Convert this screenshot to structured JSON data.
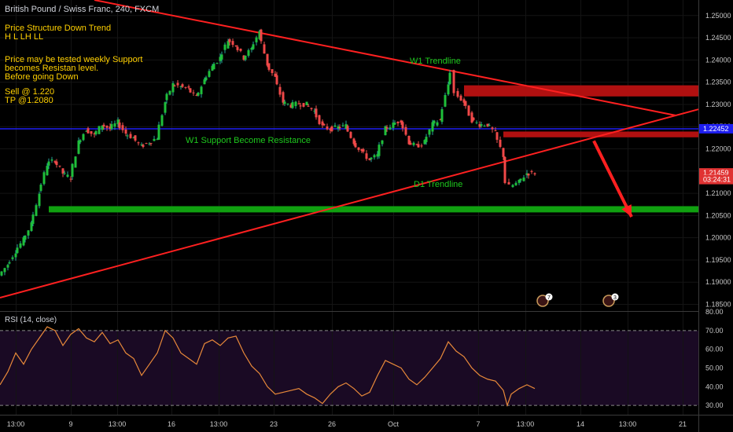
{
  "header": {
    "title": "British Pound / Swiss Franc, 240, FXCM"
  },
  "annotations": {
    "structure_title": "Price Structure Down Trend",
    "structure_sub": "H L LH LL",
    "desc_1": "Price may be tested weekly Support",
    "desc_2": "becomes Resistan level.",
    "desc_3": "Before going Down",
    "sell": "Sell @ 1.220",
    "tp": "TP @1.2080",
    "w1_trendline": "W1 Trendline",
    "w1_support": "W1 Support Become Resistance",
    "d1_trendline": "D1 Trendline"
  },
  "event_badges": [
    "7",
    "3"
  ],
  "chart_data": {
    "type": "line",
    "title": "British Pound / Swiss Franc, 240, FXCM",
    "price_axis": {
      "ylim": [
        1.1835,
        1.2535
      ],
      "ticks": [
        "1.25000",
        "1.24500",
        "1.24000",
        "1.23500",
        "1.23000",
        "1.22500",
        "1.22000",
        "1.21500",
        "1.21000",
        "1.20500",
        "1.20000",
        "1.19500",
        "1.19000",
        "1.18500"
      ],
      "tick_values": [
        1.25,
        1.245,
        1.24,
        1.235,
        1.23,
        1.225,
        1.22,
        1.215,
        1.21,
        1.205,
        1.2,
        1.195,
        1.19,
        1.185
      ],
      "tags": [
        {
          "label": "1.22452",
          "value": 1.22452,
          "color": "#1e1ef0"
        },
        {
          "label": "1.21459",
          "value": 1.21459,
          "color": "#e03232"
        },
        {
          "label": "03:24:31",
          "value": 1.21309,
          "color": "#e03232"
        }
      ]
    },
    "x_axis": {
      "ticks": [
        "13:00",
        "9",
        "13:00",
        "16",
        "13:00",
        "23",
        "26",
        "Oct",
        "7",
        "13:00",
        "14",
        "13:00",
        "21"
      ],
      "tick_positions": [
        20,
        90,
        149,
        218,
        278,
        348,
        422,
        500,
        608,
        668,
        738,
        798,
        868
      ],
      "xlim": [
        0,
        888
      ]
    },
    "levels": [
      {
        "name": "W1 Support Become Resistance",
        "value": 1.22452,
        "color": "#1e1ef0"
      }
    ],
    "zones": [
      {
        "from": 1.2318,
        "to": 1.2343,
        "x_start": 590,
        "color": "#b01010"
      },
      {
        "from": 1.2226,
        "to": 1.2239,
        "x_start": 640,
        "color": "#b01010"
      },
      {
        "from": 1.2057,
        "to": 1.2071,
        "x_start": 62,
        "color": "#10a010"
      }
    ],
    "trendlines": [
      {
        "name": "W1 Trendline",
        "x": [
          120,
          860
        ],
        "y": [
          1.2535,
          1.2275
        ],
        "color": "#ff2020"
      },
      {
        "name": "D1 Trendline",
        "x": [
          0,
          888
        ],
        "y": [
          1.1865,
          1.2289
        ],
        "color": "#ff2020"
      }
    ],
    "projection": {
      "x": [
        755,
        803
      ],
      "y": [
        1.2218,
        1.2047
      ],
      "color": "#ff2020"
    },
    "price_series": {
      "x": [
        0,
        10,
        20,
        30,
        40,
        50,
        60,
        70,
        80,
        90,
        100,
        110,
        120,
        130,
        140,
        150,
        160,
        170,
        180,
        190,
        200,
        210,
        220,
        230,
        240,
        250,
        260,
        270,
        280,
        290,
        300,
        310,
        320,
        330,
        340,
        350,
        360,
        370,
        380,
        390,
        400,
        410,
        420,
        430,
        440,
        450,
        460,
        470,
        480,
        490,
        500,
        510,
        520,
        530,
        540,
        550,
        560,
        570,
        575,
        580,
        590,
        600,
        610,
        620,
        630,
        640,
        645,
        650,
        660,
        670,
        680
      ],
      "y": [
        1.1915,
        1.194,
        1.197,
        1.1995,
        1.203,
        1.21,
        1.2165,
        1.2175,
        1.2145,
        1.2135,
        1.2215,
        1.2245,
        1.223,
        1.2255,
        1.2245,
        1.226,
        1.2235,
        1.2225,
        1.2205,
        1.2215,
        1.2225,
        1.2305,
        1.2345,
        1.234,
        1.2335,
        1.2315,
        1.2355,
        1.2385,
        1.2405,
        1.2445,
        1.2435,
        1.2405,
        1.2425,
        1.2465,
        1.239,
        1.236,
        1.2305,
        1.2298,
        1.2302,
        1.23,
        1.2285,
        1.225,
        1.2245,
        1.2248,
        1.2252,
        1.2215,
        1.2195,
        1.2175,
        1.2185,
        1.2245,
        1.2255,
        1.2265,
        1.2215,
        1.2205,
        1.2215,
        1.2255,
        1.2265,
        1.2345,
        1.2375,
        1.2325,
        1.2305,
        1.2265,
        1.2255,
        1.2255,
        1.2235,
        1.2185,
        1.2125,
        1.2115,
        1.2125,
        1.2145,
        1.2146
      ]
    },
    "rsi": {
      "title": "RSI (14, close)",
      "ylim": [
        25,
        80
      ],
      "ticks": [
        "80.00",
        "70.00",
        "60.00",
        "50.00",
        "40.00",
        "30.00"
      ],
      "tick_values": [
        80,
        70,
        60,
        50,
        40,
        30
      ],
      "band": [
        30,
        70
      ],
      "x": [
        0,
        10,
        20,
        30,
        40,
        50,
        60,
        70,
        80,
        90,
        100,
        110,
        120,
        130,
        140,
        150,
        160,
        170,
        180,
        190,
        200,
        210,
        220,
        230,
        240,
        250,
        260,
        270,
        280,
        290,
        300,
        310,
        320,
        330,
        340,
        350,
        360,
        370,
        380,
        390,
        400,
        410,
        420,
        430,
        440,
        450,
        460,
        470,
        480,
        490,
        500,
        510,
        520,
        530,
        540,
        550,
        560,
        570,
        580,
        590,
        600,
        610,
        620,
        630,
        640,
        645,
        650,
        660,
        670,
        680
      ],
      "values": [
        41,
        48,
        58,
        52,
        60,
        66,
        72,
        70,
        62,
        68,
        71,
        66,
        64,
        69,
        63,
        65,
        58,
        55,
        46,
        52,
        58,
        70,
        66,
        58,
        55,
        52,
        63,
        65,
        62,
        66,
        67,
        58,
        51,
        47,
        40,
        36,
        37,
        38,
        39,
        36,
        34,
        31,
        36,
        40,
        42,
        39,
        35,
        37,
        46,
        54,
        52,
        50,
        44,
        41,
        45,
        50,
        55,
        64,
        59,
        56,
        50,
        46,
        44,
        43,
        38,
        30,
        36,
        39,
        41,
        39
      ]
    }
  }
}
